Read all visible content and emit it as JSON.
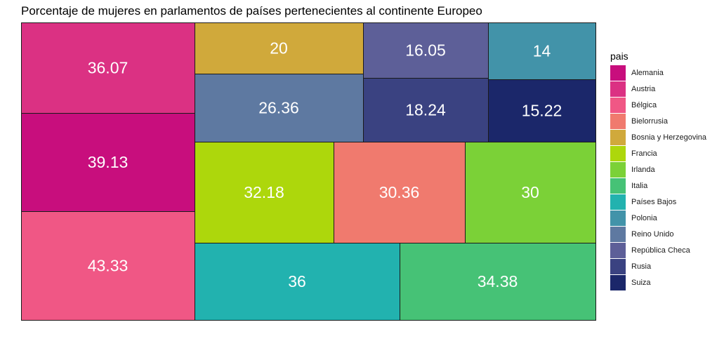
{
  "chart_data": {
    "type": "treemap",
    "title": "Porcentaje de mujeres en parlamentos de países pertenecientes al continente Europeo",
    "legend_title": "pais",
    "legend_position": "right",
    "series": [
      {
        "name": "Alemania",
        "value": 39.13,
        "color": "#C80E7D"
      },
      {
        "name": "Austria",
        "value": 36.07,
        "color": "#DB3183"
      },
      {
        "name": "Bélgica",
        "value": 43.33,
        "color": "#F05785"
      },
      {
        "name": "Bielorrusia",
        "value": 30.36,
        "color": "#F07A6E"
      },
      {
        "name": "Bosnia y Herzegovina",
        "value": 20,
        "color": "#D0A93B"
      },
      {
        "name": "Francia",
        "value": 32.18,
        "color": "#ADD70C"
      },
      {
        "name": "Irlanda",
        "value": 30,
        "color": "#7BD137"
      },
      {
        "name": "Italia",
        "value": 34.38,
        "color": "#46C276"
      },
      {
        "name": "Países Bajos",
        "value": 36,
        "color": "#22B2AF"
      },
      {
        "name": "Polonia",
        "value": 14,
        "color": "#4293A9"
      },
      {
        "name": "Reino Unido",
        "value": 26.36,
        "color": "#5E79A1"
      },
      {
        "name": "República Checa",
        "value": 16.05,
        "color": "#5D5F98"
      },
      {
        "name": "Rusia",
        "value": 18.24,
        "color": "#3A4281"
      },
      {
        "name": "Suiza",
        "value": 15.22,
        "color": "#1B276A"
      }
    ]
  }
}
